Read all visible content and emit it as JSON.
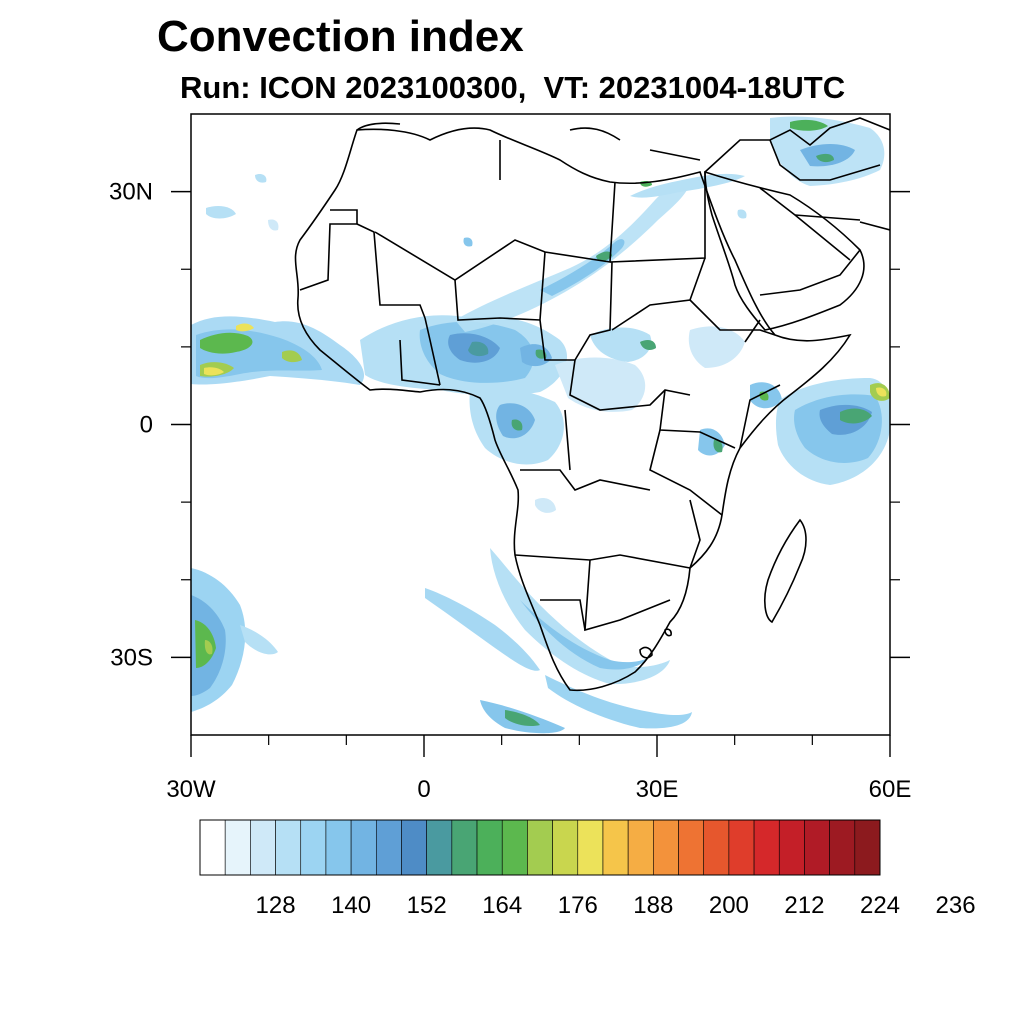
{
  "title": "Convection index",
  "subtitle": "Run: ICON 2023100300,  VT: 20231004-18UTC",
  "map": {
    "lon_range": [
      -30,
      60
    ],
    "lat_range": [
      -40,
      40
    ],
    "lon_ticks": [
      {
        "value": -30,
        "label": "30W"
      },
      {
        "value": 0,
        "label": "0"
      },
      {
        "value": 30,
        "label": "30E"
      },
      {
        "value": 60,
        "label": "60E"
      }
    ],
    "lat_ticks": [
      {
        "value": 30,
        "label": "30N"
      },
      {
        "value": 0,
        "label": "0"
      },
      {
        "value": -30,
        "label": "30S"
      }
    ],
    "minor_lon_ticks": [
      -20,
      -10,
      10,
      20,
      40,
      50
    ],
    "minor_lat_ticks": [
      20,
      10,
      -10,
      -20
    ]
  },
  "colorbar": {
    "colors": [
      "#ffffff",
      "#e6f4fb",
      "#cfe9f8",
      "#b6e0f5",
      "#9cd4f2",
      "#86c6ec",
      "#72b4e3",
      "#5f9fd6",
      "#4e8cc6",
      "#4a9aa0",
      "#49a574",
      "#4cb05a",
      "#5cb84e",
      "#a3cc50",
      "#c9d64e",
      "#ece25a",
      "#f5c54a",
      "#f5ad44",
      "#f3923b",
      "#ee7333",
      "#e6572d",
      "#df3d2b",
      "#d5282a",
      "#c41f28",
      "#b01b26",
      "#9d1a22",
      "#8c1a1e"
    ],
    "tick_labels": [
      "128",
      "140",
      "152",
      "164",
      "176",
      "188",
      "200",
      "212",
      "224",
      "236"
    ]
  },
  "chart_data": {
    "type": "heatmap",
    "title": "Convection index",
    "subtitle": "Run: ICON 2023100300,  VT: 20231004-18UTC",
    "xlim": [
      -30,
      60
    ],
    "ylim": [
      -40,
      40
    ],
    "colorbar_ticks": [
      128,
      140,
      152,
      164,
      176,
      188,
      200,
      212,
      224,
      236
    ]
  }
}
